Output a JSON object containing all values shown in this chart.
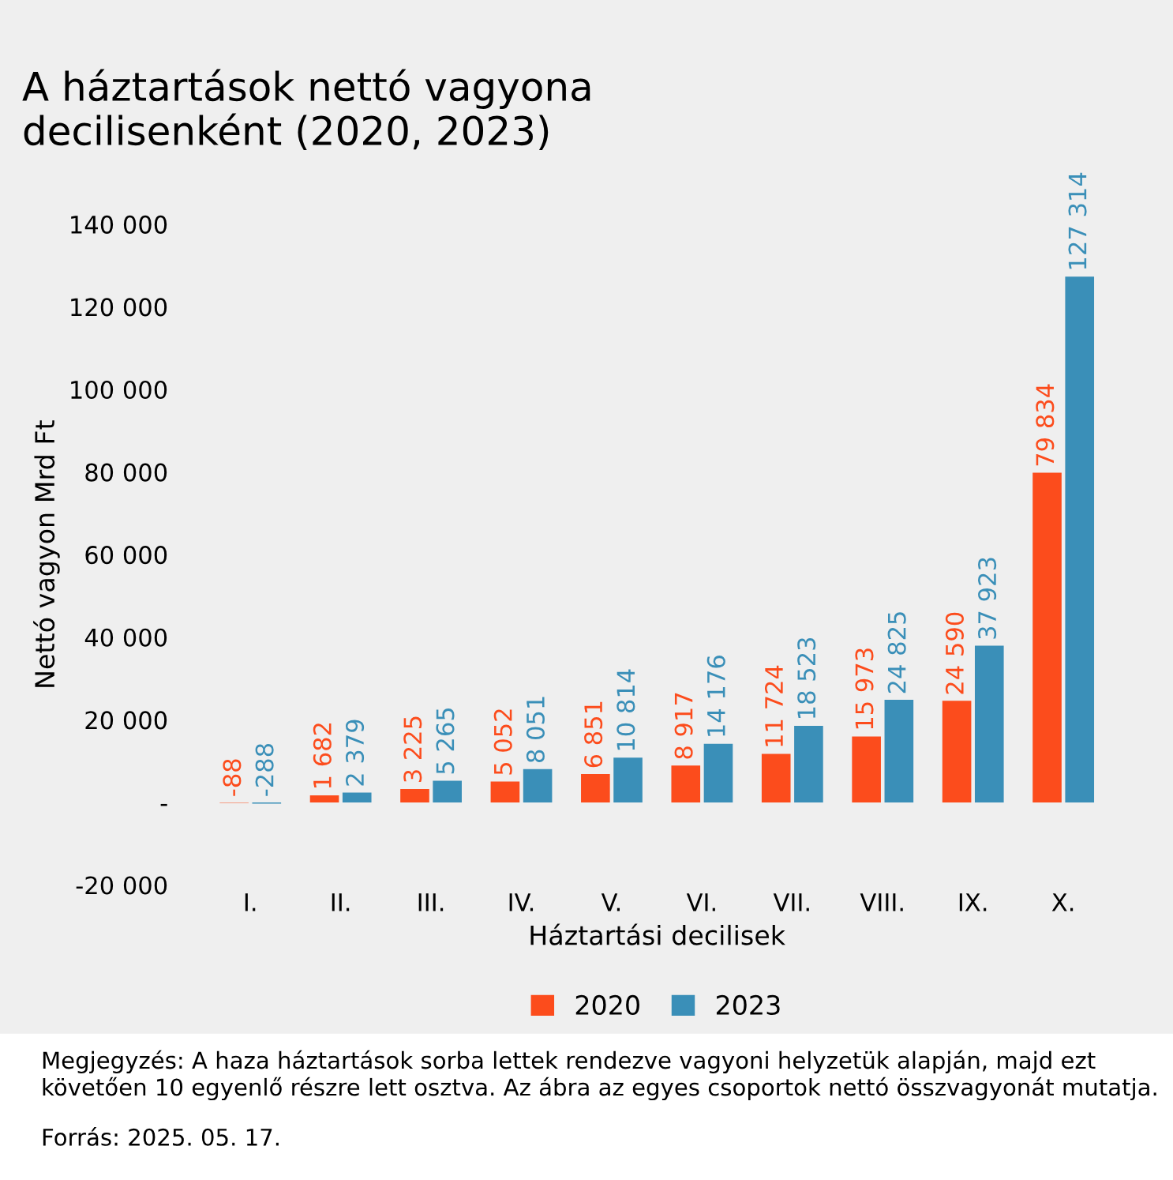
{
  "chart_data": {
    "type": "bar",
    "title": "A háztartások nettó vagyona\ndecilisenként (2020, 2023)",
    "xlabel": "Háztartási decilisek",
    "ylabel": "Nettó vagyon Mrd Ft",
    "categories": [
      "I.",
      "II.",
      "III.",
      "IV.",
      "V.",
      "VI.",
      "VII.",
      "VIII.",
      "IX.",
      "X."
    ],
    "series": [
      {
        "name": "2020",
        "color": "#fc4c1c",
        "values": [
          -88,
          1682,
          3225,
          5052,
          6851,
          8917,
          11724,
          15973,
          24590,
          79834
        ],
        "value_labels": [
          "-88",
          "1 682",
          "3 225",
          "5 052",
          "6 851",
          "8 917",
          "11 724",
          "15 973",
          "24 590",
          "79 834"
        ]
      },
      {
        "name": "2023",
        "color": "#3a8fb8",
        "values": [
          -288,
          2379,
          5265,
          8051,
          10814,
          14176,
          18523,
          24825,
          37923,
          127314
        ],
        "value_labels": [
          "-288",
          "2 379",
          "5 265",
          "8 051",
          "10 814",
          "14 176",
          "18 523",
          "24 825",
          "37 923",
          "127 314"
        ]
      }
    ],
    "ylim": [
      -20000,
      140000
    ],
    "yticks": [
      {
        "value": -20000,
        "label": "-20 000"
      },
      {
        "value": 0,
        "label": "-"
      },
      {
        "value": 20000,
        "label": "20 000"
      },
      {
        "value": 40000,
        "label": "40 000"
      },
      {
        "value": 60000,
        "label": "60 000"
      },
      {
        "value": 80000,
        "label": "80 000"
      },
      {
        "value": 100000,
        "label": "100 000"
      },
      {
        "value": 120000,
        "label": "120 000"
      },
      {
        "value": 140000,
        "label": "140 000"
      }
    ],
    "grid": false,
    "legend": "bottom",
    "annotations": [
      "Megjegyzés: A haza háztartások sorba lettek rendezve vagyoni helyzetük alapján, majd ezt követően 10 egyenlő részre lett osztva. Az ábra az egyes csoportok nettó összvagyonát mutatja.",
      "Forrás: 2025. 05. 17."
    ]
  }
}
